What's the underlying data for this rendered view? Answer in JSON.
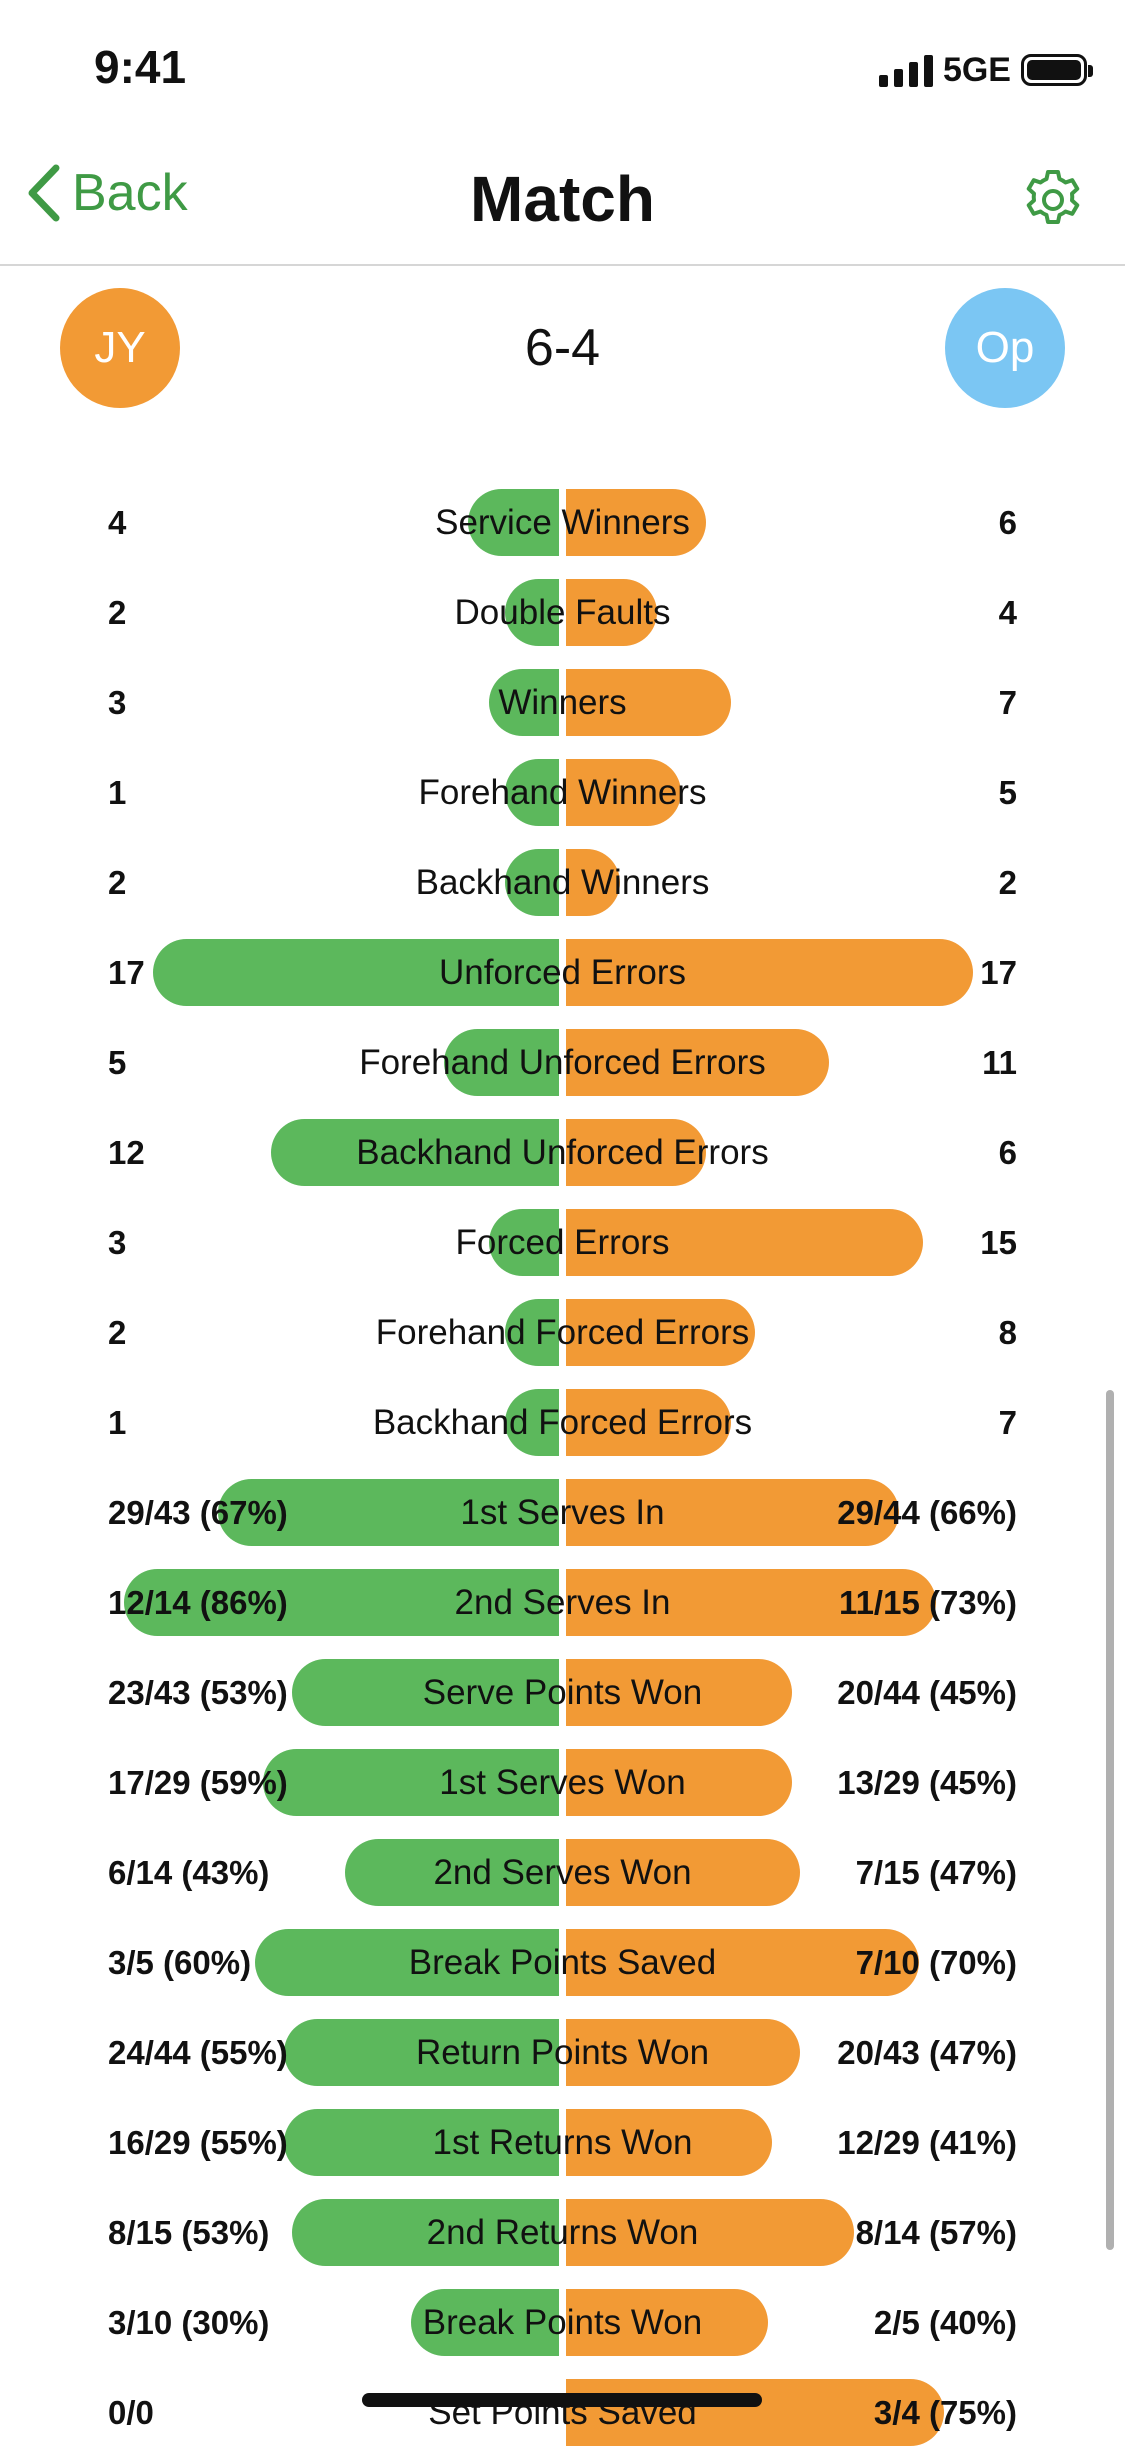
{
  "status": {
    "time": "9:41",
    "network": "5GE"
  },
  "nav": {
    "back_label": "Back",
    "title": "Match",
    "settings_icon": "gear-icon"
  },
  "match": {
    "player_left": "JY",
    "player_right": "Op",
    "score": "6-4"
  },
  "colors": {
    "left": "#5cb85c",
    "right": "#f29a35",
    "accent": "#3f9a45"
  },
  "stats": [
    {
      "label": "Service Winners",
      "left": "4",
      "right": "6",
      "left_fraction": 0.23,
      "right_fraction": 0.35
    },
    {
      "label": "Double Faults",
      "left": "2",
      "right": "4",
      "left_fraction": 0.14,
      "right_fraction": 0.23
    },
    {
      "label": "Winners",
      "left": "3",
      "right": "7",
      "left_fraction": 0.18,
      "right_fraction": 0.41
    },
    {
      "label": "Forehand Winners",
      "left": "1",
      "right": "5",
      "left_fraction": 0.14,
      "right_fraction": 0.29
    },
    {
      "label": "Backhand Winners",
      "left": "2",
      "right": "2",
      "left_fraction": 0.14,
      "right_fraction": 0.14
    },
    {
      "label": "Unforced Errors",
      "left": "17",
      "right": "17",
      "left_fraction": 1.0,
      "right_fraction": 1.0
    },
    {
      "label": "Forehand Unforced Errors",
      "left": "5",
      "right": "11",
      "left_fraction": 0.29,
      "right_fraction": 0.65
    },
    {
      "label": "Backhand Unforced Errors",
      "left": "12",
      "right": "6",
      "left_fraction": 0.71,
      "right_fraction": 0.35
    },
    {
      "label": "Forced Errors",
      "left": "3",
      "right": "15",
      "left_fraction": 0.18,
      "right_fraction": 0.88
    },
    {
      "label": "Forehand Forced Errors",
      "left": "2",
      "right": "8",
      "left_fraction": 0.14,
      "right_fraction": 0.47
    },
    {
      "label": "Backhand Forced Errors",
      "left": "1",
      "right": "7",
      "left_fraction": 0.14,
      "right_fraction": 0.41
    },
    {
      "label": "1st Serves In",
      "left": "29/43 (67%)",
      "right": "29/44 (66%)",
      "left_fraction": 0.84,
      "right_fraction": 0.82
    },
    {
      "label": "2nd Serves In",
      "left": "12/14 (86%)",
      "right": "11/15 (73%)",
      "left_fraction": 1.07,
      "right_fraction": 0.91
    },
    {
      "label": "Serve Points Won",
      "left": "23/43 (53%)",
      "right": "20/44 (45%)",
      "left_fraction": 0.66,
      "right_fraction": 0.56
    },
    {
      "label": "1st Serves Won",
      "left": "17/29 (59%)",
      "right": "13/29 (45%)",
      "left_fraction": 0.73,
      "right_fraction": 0.56
    },
    {
      "label": "2nd Serves Won",
      "left": "6/14 (43%)",
      "right": "7/15 (47%)",
      "left_fraction": 0.53,
      "right_fraction": 0.58
    },
    {
      "label": "Break Points Saved",
      "left": "3/5 (60%)",
      "right": "7/10 (70%)",
      "left_fraction": 0.75,
      "right_fraction": 0.87
    },
    {
      "label": "Return Points Won",
      "left": "24/44 (55%)",
      "right": "20/43 (47%)",
      "left_fraction": 0.68,
      "right_fraction": 0.58
    },
    {
      "label": "1st Returns Won",
      "left": "16/29 (55%)",
      "right": "12/29 (41%)",
      "left_fraction": 0.68,
      "right_fraction": 0.51
    },
    {
      "label": "2nd Returns Won",
      "left": "8/15 (53%)",
      "right": "8/14 (57%)",
      "left_fraction": 0.66,
      "right_fraction": 0.71
    },
    {
      "label": "Break Points Won",
      "left": "3/10 (30%)",
      "right": "2/5 (40%)",
      "left_fraction": 0.37,
      "right_fraction": 0.5
    },
    {
      "label": "Set Points Saved",
      "left": "0/0",
      "right": "3/4 (75%)",
      "left_fraction": 0.0,
      "right_fraction": 0.93
    }
  ]
}
